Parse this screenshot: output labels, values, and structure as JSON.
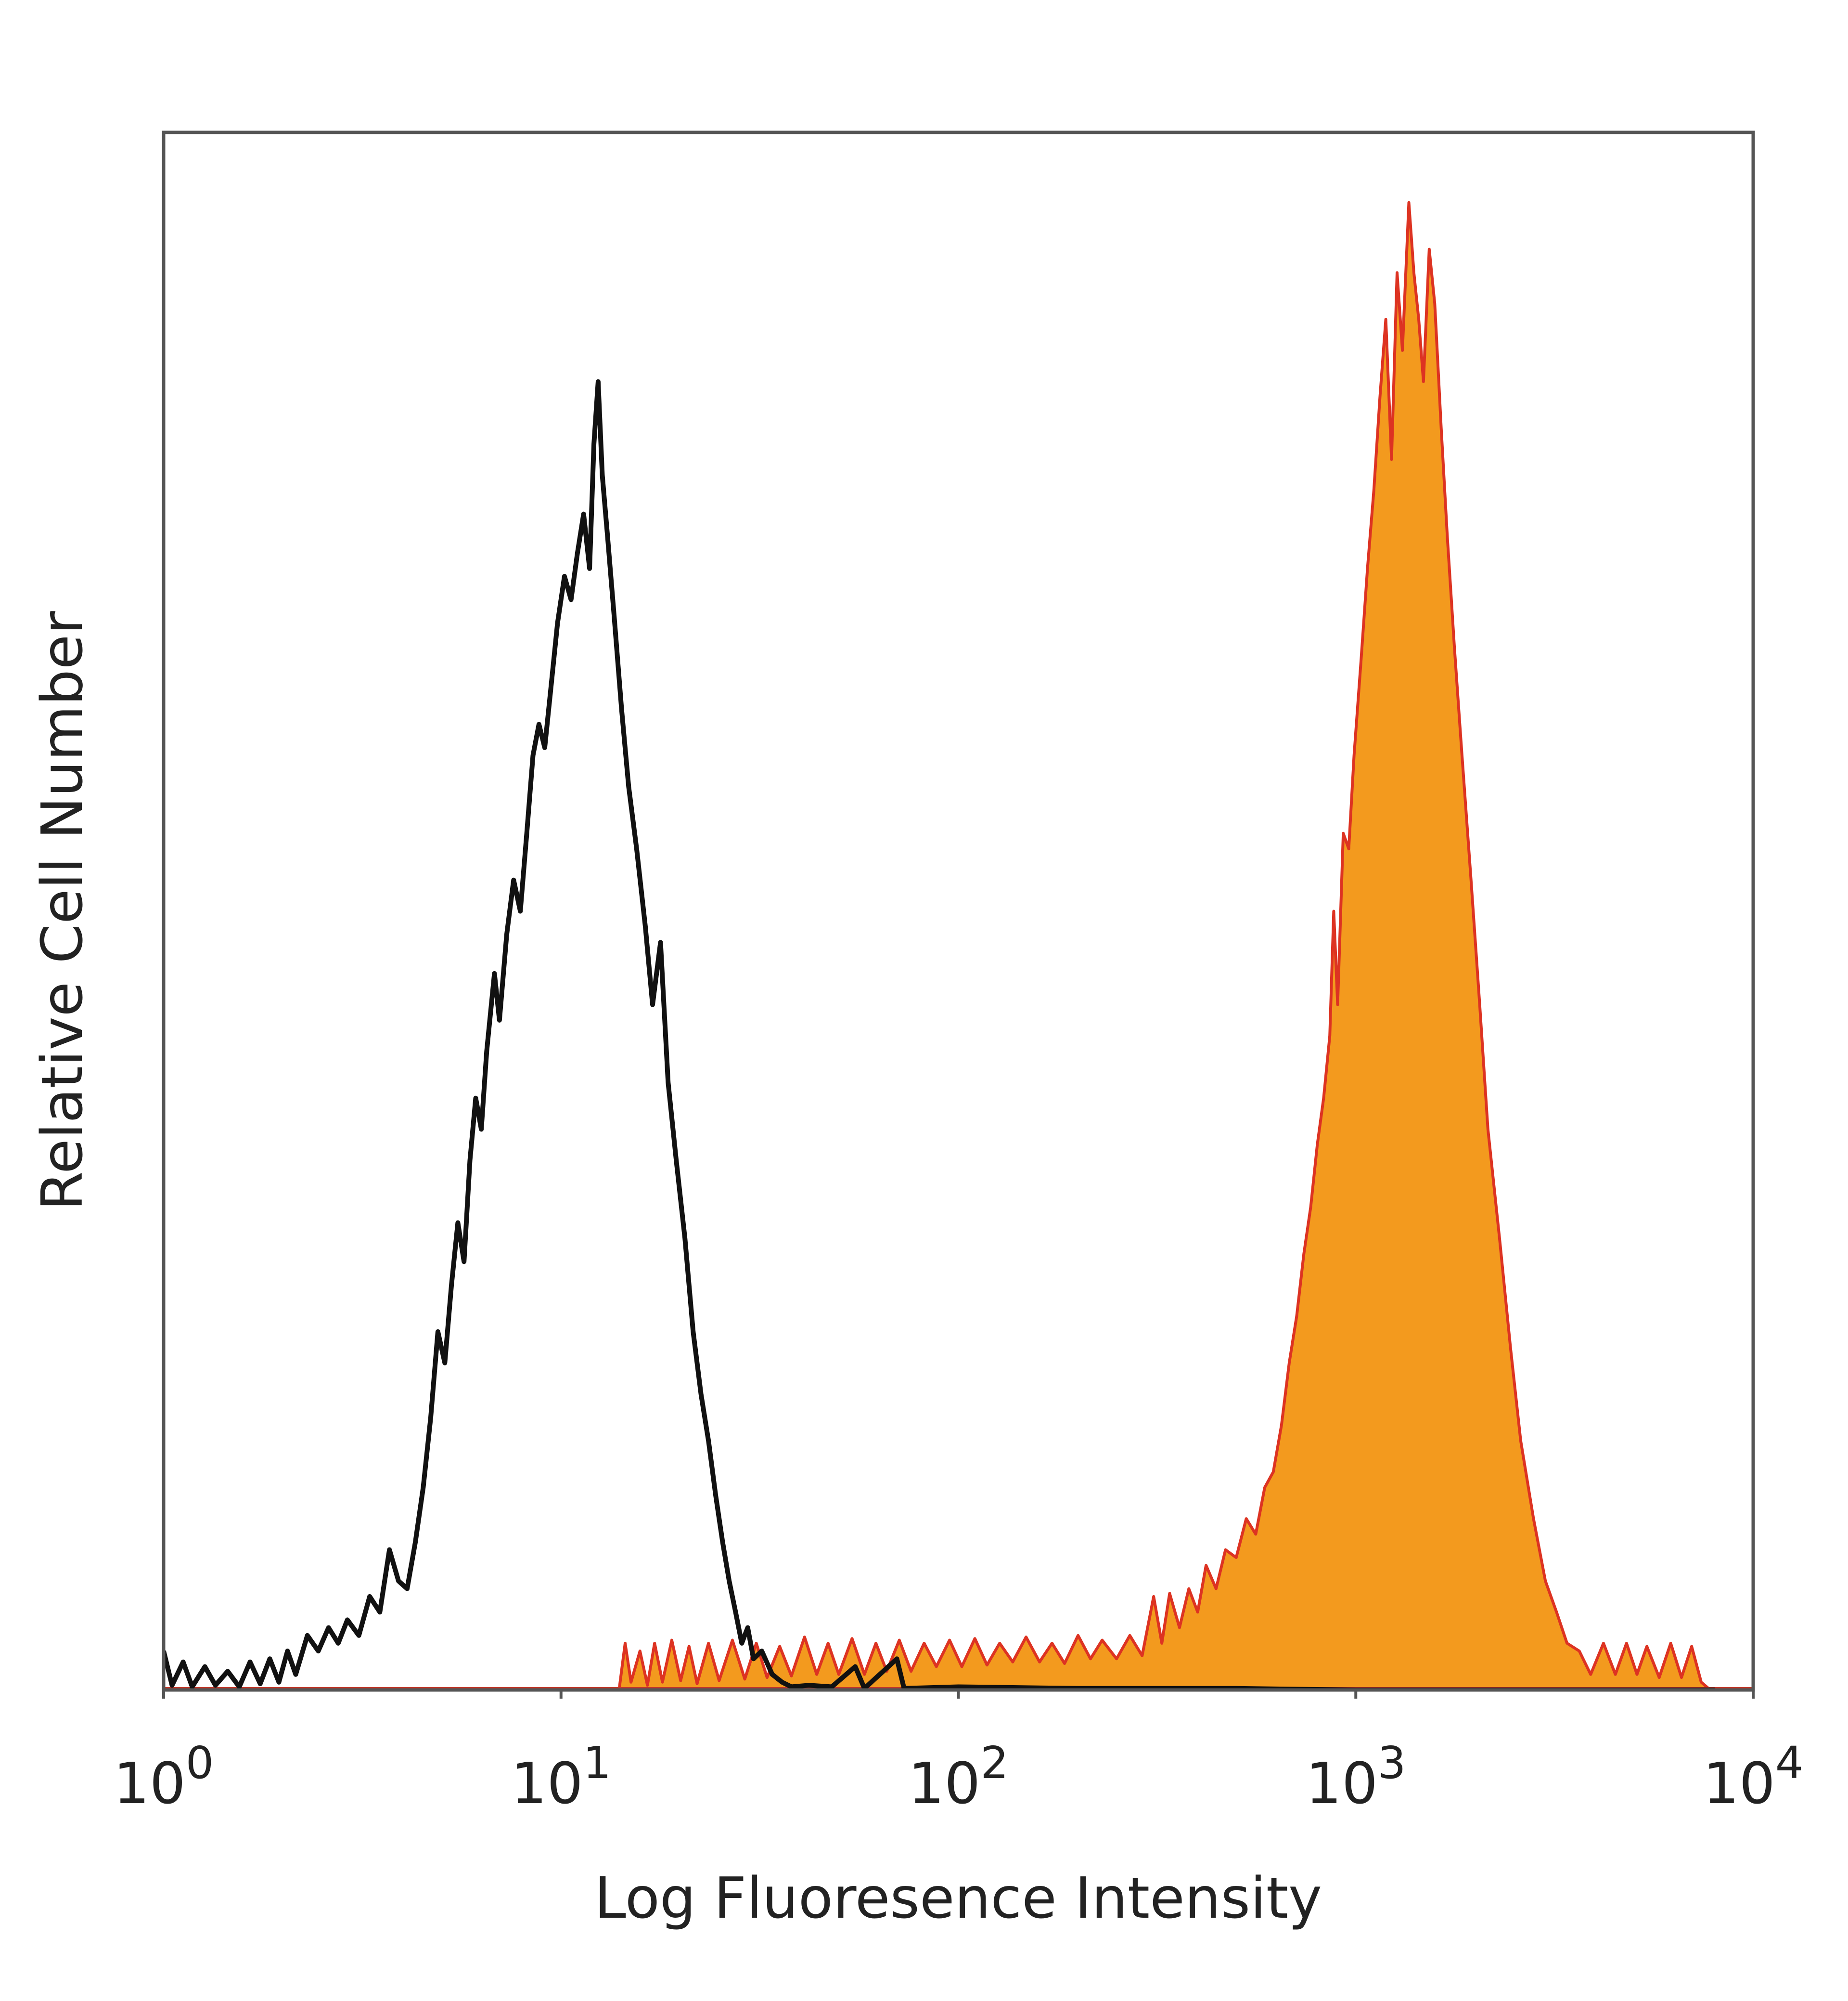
{
  "chart_data": {
    "type": "area",
    "title": "",
    "xlabel": "Log Fluoresence Intensity",
    "ylabel": "Relative Cell Number",
    "x_scale": "log",
    "xlim": [
      1,
      10000
    ],
    "ylim": [
      0,
      100
    ],
    "grid": false,
    "legend": "none",
    "x_ticks": [
      {
        "value": 1,
        "base": "10",
        "exp": "0"
      },
      {
        "value": 10,
        "base": "10",
        "exp": "1"
      },
      {
        "value": 100,
        "base": "10",
        "exp": "2"
      },
      {
        "value": 1000,
        "base": "10",
        "exp": "3"
      },
      {
        "value": 10000,
        "base": "10",
        "exp": "4"
      }
    ],
    "series": [
      {
        "style": "outline",
        "color": "#111111",
        "points": [
          [
            1.0,
            2.5
          ],
          [
            1.05,
            0.3
          ],
          [
            1.12,
            1.8
          ],
          [
            1.18,
            0.2
          ],
          [
            1.27,
            1.5
          ],
          [
            1.35,
            0.3
          ],
          [
            1.45,
            1.2
          ],
          [
            1.55,
            0.2
          ],
          [
            1.65,
            1.8
          ],
          [
            1.75,
            0.4
          ],
          [
            1.85,
            2.0
          ],
          [
            1.95,
            0.5
          ],
          [
            2.05,
            2.5
          ],
          [
            2.15,
            1.0
          ],
          [
            2.3,
            3.5
          ],
          [
            2.45,
            2.5
          ],
          [
            2.6,
            4.0
          ],
          [
            2.75,
            3.0
          ],
          [
            2.9,
            4.5
          ],
          [
            3.1,
            3.5
          ],
          [
            3.3,
            6.0
          ],
          [
            3.5,
            5.0
          ],
          [
            3.7,
            9.0
          ],
          [
            3.9,
            7.0
          ],
          [
            4.1,
            6.5
          ],
          [
            4.3,
            9.5
          ],
          [
            4.5,
            13.0
          ],
          [
            4.7,
            17.5
          ],
          [
            4.9,
            23.0
          ],
          [
            5.1,
            21.0
          ],
          [
            5.3,
            26.0
          ],
          [
            5.5,
            30.0
          ],
          [
            5.7,
            27.5
          ],
          [
            5.9,
            34.0
          ],
          [
            6.1,
            38.0
          ],
          [
            6.3,
            36.0
          ],
          [
            6.5,
            41.0
          ],
          [
            6.8,
            46.0
          ],
          [
            7.0,
            43.0
          ],
          [
            7.3,
            48.5
          ],
          [
            7.6,
            52.0
          ],
          [
            7.9,
            50.0
          ],
          [
            8.2,
            55.0
          ],
          [
            8.5,
            60.0
          ],
          [
            8.8,
            62.0
          ],
          [
            9.1,
            60.5
          ],
          [
            9.4,
            64.0
          ],
          [
            9.8,
            68.5
          ],
          [
            10.2,
            71.5
          ],
          [
            10.6,
            70.0
          ],
          [
            11.0,
            73.0
          ],
          [
            11.4,
            75.5
          ],
          [
            11.8,
            72.0
          ],
          [
            12.1,
            80.0
          ],
          [
            12.4,
            84.0
          ],
          [
            12.7,
            78.0
          ],
          [
            13.1,
            74.0
          ],
          [
            13.6,
            69.0
          ],
          [
            14.2,
            63.0
          ],
          [
            14.8,
            58.0
          ],
          [
            15.5,
            54.0
          ],
          [
            16.3,
            49.0
          ],
          [
            17.0,
            44.0
          ],
          [
            17.8,
            48.0
          ],
          [
            18.6,
            39.0
          ],
          [
            19.5,
            34.0
          ],
          [
            20.5,
            29.0
          ],
          [
            21.5,
            23.0
          ],
          [
            22.5,
            19.0
          ],
          [
            23.5,
            16.0
          ],
          [
            24.5,
            12.5
          ],
          [
            25.5,
            9.5
          ],
          [
            26.5,
            7.0
          ],
          [
            27.5,
            5.0
          ],
          [
            28.5,
            3.0
          ],
          [
            29.5,
            4.0
          ],
          [
            30.5,
            2.0
          ],
          [
            32.0,
            2.5
          ],
          [
            34.0,
            1.0
          ],
          [
            36.0,
            0.5
          ],
          [
            38.0,
            0.2
          ],
          [
            42.0,
            0.3
          ],
          [
            48.0,
            0.2
          ],
          [
            55.0,
            1.5
          ],
          [
            58.0,
            0.1
          ],
          [
            70.0,
            2.0
          ],
          [
            73.0,
            0.1
          ],
          [
            100.0,
            0.2
          ],
          [
            200.0,
            0.1
          ],
          [
            500.0,
            0.1
          ],
          [
            1000.0,
            0.0
          ],
          [
            8000.0,
            0.0
          ]
        ]
      },
      {
        "style": "filled",
        "color": "#F39A1E",
        "edge_color": "#DD3322",
        "points": [
          [
            14.0,
            0.0
          ],
          [
            14.5,
            3.0
          ],
          [
            15.0,
            0.5
          ],
          [
            15.8,
            2.5
          ],
          [
            16.5,
            0.3
          ],
          [
            17.2,
            3.0
          ],
          [
            18.0,
            0.5
          ],
          [
            19.0,
            3.2
          ],
          [
            20.0,
            0.6
          ],
          [
            21.0,
            2.8
          ],
          [
            22.0,
            0.4
          ],
          [
            23.5,
            3.0
          ],
          [
            25.0,
            0.6
          ],
          [
            27.0,
            3.2
          ],
          [
            29.0,
            0.7
          ],
          [
            31.0,
            3.0
          ],
          [
            33.0,
            0.8
          ],
          [
            35.5,
            2.8
          ],
          [
            38.0,
            0.9
          ],
          [
            41.0,
            3.4
          ],
          [
            44.0,
            1.0
          ],
          [
            47.0,
            3.0
          ],
          [
            50.0,
            1.0
          ],
          [
            54.0,
            3.3
          ],
          [
            58.0,
            1.0
          ],
          [
            62.0,
            3.0
          ],
          [
            66.0,
            1.2
          ],
          [
            71.0,
            3.2
          ],
          [
            76.0,
            1.2
          ],
          [
            82.0,
            3.0
          ],
          [
            88.0,
            1.5
          ],
          [
            95.0,
            3.2
          ],
          [
            102.0,
            1.5
          ],
          [
            110.0,
            3.3
          ],
          [
            118.0,
            1.6
          ],
          [
            127.0,
            3.0
          ],
          [
            137.0,
            1.8
          ],
          [
            148.0,
            3.4
          ],
          [
            160.0,
            1.8
          ],
          [
            172.0,
            3.0
          ],
          [
            185.0,
            1.7
          ],
          [
            200.0,
            3.5
          ],
          [
            215.0,
            2.0
          ],
          [
            230.0,
            3.2
          ],
          [
            250.0,
            2.0
          ],
          [
            270.0,
            3.5
          ],
          [
            290.0,
            2.2
          ],
          [
            310.0,
            6.0
          ],
          [
            325.0,
            3.0
          ],
          [
            340.0,
            6.2
          ],
          [
            360.0,
            4.0
          ],
          [
            380.0,
            6.5
          ],
          [
            400.0,
            5.0
          ],
          [
            420.0,
            8.0
          ],
          [
            445.0,
            6.5
          ],
          [
            470.0,
            9.0
          ],
          [
            500.0,
            8.5
          ],
          [
            530.0,
            11.0
          ],
          [
            560.0,
            10.0
          ],
          [
            590.0,
            13.0
          ],
          [
            620.0,
            14.0
          ],
          [
            650.0,
            17.0
          ],
          [
            680.0,
            21.0
          ],
          [
            710.0,
            24.0
          ],
          [
            740.0,
            28.0
          ],
          [
            770.0,
            31.0
          ],
          [
            800.0,
            35.0
          ],
          [
            830.0,
            38.0
          ],
          [
            860.0,
            42.0
          ],
          [
            880.0,
            50.0
          ],
          [
            900.0,
            44.0
          ],
          [
            930.0,
            55.0
          ],
          [
            960.0,
            54.0
          ],
          [
            990.0,
            60.0
          ],
          [
            1030.0,
            66.0
          ],
          [
            1070.0,
            72.0
          ],
          [
            1110.0,
            77.0
          ],
          [
            1150.0,
            83.0
          ],
          [
            1190.0,
            88.0
          ],
          [
            1230.0,
            79.0
          ],
          [
            1270.0,
            91.0
          ],
          [
            1310.0,
            86.0
          ],
          [
            1360.0,
            95.5
          ],
          [
            1400.0,
            91.0
          ],
          [
            1440.0,
            88.0
          ],
          [
            1480.0,
            84.0
          ],
          [
            1530.0,
            92.5
          ],
          [
            1580.0,
            89.0
          ],
          [
            1640.0,
            81.0
          ],
          [
            1700.0,
            74.0
          ],
          [
            1770.0,
            67.0
          ],
          [
            1850.0,
            60.0
          ],
          [
            1950.0,
            52.0
          ],
          [
            2050.0,
            44.0
          ],
          [
            2150.0,
            36.0
          ],
          [
            2300.0,
            29.0
          ],
          [
            2450.0,
            22.0
          ],
          [
            2600.0,
            16.0
          ],
          [
            2800.0,
            11.0
          ],
          [
            3000.0,
            7.0
          ],
          [
            3200.0,
            5.0
          ],
          [
            3400.0,
            3.0
          ],
          [
            3650.0,
            2.5
          ],
          [
            3900.0,
            1.0
          ],
          [
            4200.0,
            3.0
          ],
          [
            4500.0,
            1.0
          ],
          [
            4800.0,
            3.0
          ],
          [
            5100.0,
            1.0
          ],
          [
            5400.0,
            2.8
          ],
          [
            5800.0,
            0.8
          ],
          [
            6200.0,
            3.0
          ],
          [
            6600.0,
            0.8
          ],
          [
            7000.0,
            2.8
          ],
          [
            7400.0,
            0.5
          ],
          [
            7800.0,
            0.0
          ]
        ]
      }
    ]
  }
}
